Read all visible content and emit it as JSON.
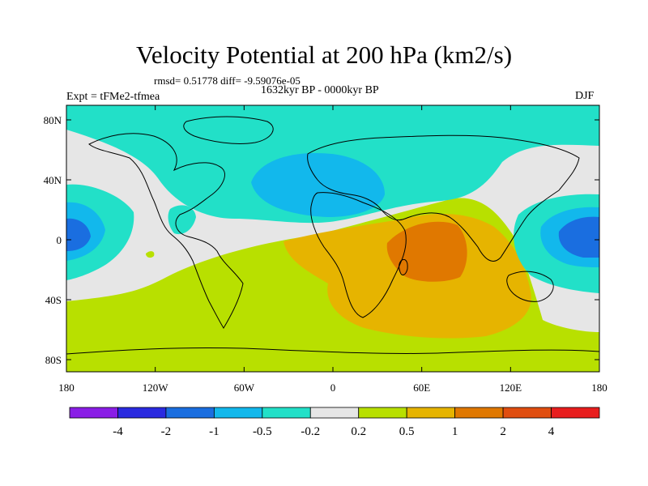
{
  "title": "Velocity Potential at 200 hPa (km2/s)",
  "stats": "rmsd= 0.51778  diff= -9.59076e-05",
  "period": "1632kyr BP - 0000kyr BP",
  "experiment": "Expt = tFMe2-tfmea",
  "season": "DJF",
  "lat_labels": [
    "80N",
    "40N",
    "0",
    "40S",
    "80S"
  ],
  "lon_labels": [
    "180",
    "120W",
    "60W",
    "0",
    "60E",
    "120E",
    "180"
  ],
  "colorbar": {
    "colors": [
      "#8a1ee6",
      "#2a2ae0",
      "#1a6ee0",
      "#12b8ec",
      "#22e0c8",
      "#e6e6e6",
      "#b8e000",
      "#e6b400",
      "#e07800",
      "#e04e10",
      "#e81e1e"
    ],
    "labels": [
      "-4",
      "-2",
      "-1",
      "-0.5",
      "-0.2",
      "0.2",
      "0.5",
      "1",
      "2",
      "4"
    ]
  }
}
